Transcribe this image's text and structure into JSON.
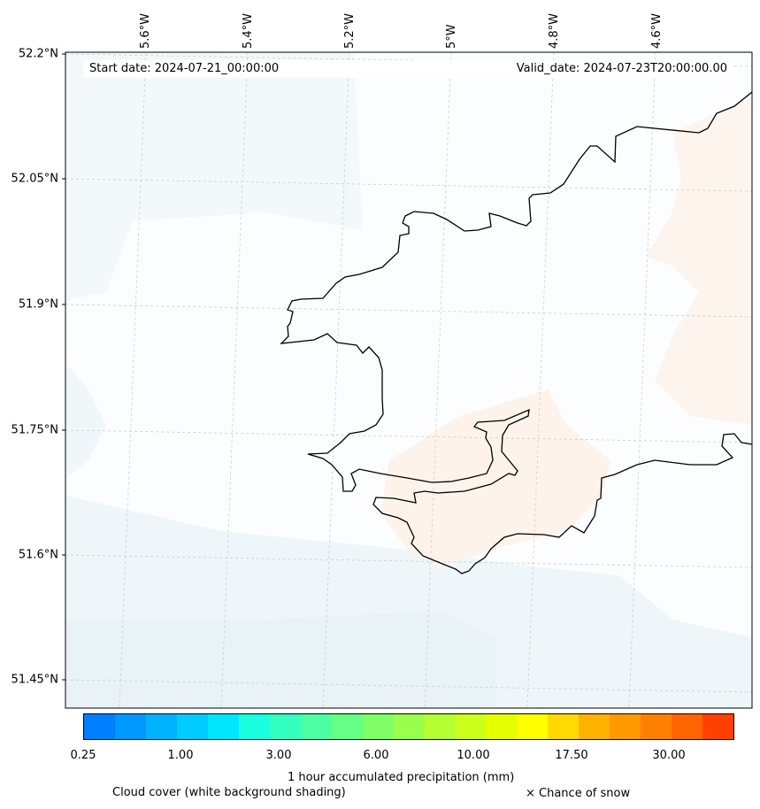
{
  "map": {
    "start_date": "Start date: 2024-07-21_00:00:00",
    "valid_date": "Valid_date: 2024-07-23T20:00:00.00",
    "lat_labels": [
      "52.2°N",
      "52.05°N",
      "51.9°N",
      "51.75°N",
      "51.6°N",
      "51.45°N"
    ],
    "lon_labels": [
      "5.6°W",
      "5.4°W",
      "5.2°W",
      "5°W",
      "4.8°W",
      "4.6°W"
    ],
    "coastline_color": "#000000",
    "cloud_shading_color": "#e6f2f7",
    "precip_shading_color": "#fbe9dc"
  },
  "legend": {
    "colorbar_colors": [
      "#0080ff",
      "#0099ff",
      "#00b3ff",
      "#00ccff",
      "#00e6ff",
      "#19ffe0",
      "#33ffc0",
      "#4dffa3",
      "#66ff85",
      "#80ff66",
      "#99ff4d",
      "#b3ff33",
      "#ccff19",
      "#e6ff00",
      "#ffff00",
      "#ffd900",
      "#ffb300",
      "#ff9900",
      "#ff8000",
      "#ff6600",
      "#ff4000"
    ],
    "ticks": [
      "0.25",
      "1.00",
      "3.00",
      "6.00",
      "10.00",
      "17.50",
      "30.00"
    ],
    "title": "1 hour accumulated precipitation (mm)",
    "cloud_caption": "Cloud cover (white background shading)",
    "snow_caption": "× Chance of snow"
  }
}
